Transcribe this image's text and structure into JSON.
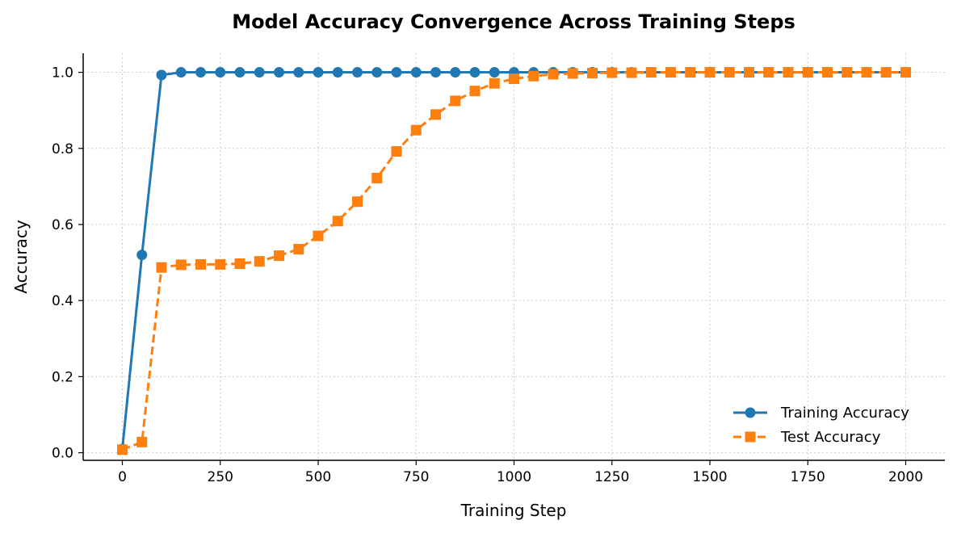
{
  "chart_data": {
    "type": "line",
    "title": "Model Accuracy Convergence Across Training Steps",
    "xlabel": "Training Step",
    "ylabel": "Accuracy",
    "xlim": [
      -100,
      2100
    ],
    "ylim": [
      -0.02,
      1.05
    ],
    "xticks": [
      0,
      250,
      500,
      750,
      1000,
      1250,
      1500,
      1750,
      2000
    ],
    "xtick_labels": [
      "0",
      "250",
      "500",
      "750",
      "1000",
      "1250",
      "1500",
      "1750",
      "2000"
    ],
    "yticks": [
      0.0,
      0.2,
      0.4,
      0.6,
      0.8,
      1.0
    ],
    "ytick_labels": [
      "0.0",
      "0.2",
      "0.4",
      "0.6",
      "0.8",
      "1.0"
    ],
    "grid": true,
    "legend_position": "lower-right",
    "x": [
      0,
      50,
      100,
      150,
      200,
      250,
      300,
      350,
      400,
      450,
      500,
      550,
      600,
      650,
      700,
      750,
      800,
      850,
      900,
      950,
      1000,
      1050,
      1100,
      1150,
      1200,
      1250,
      1300,
      1350,
      1400,
      1450,
      1500,
      1550,
      1600,
      1650,
      1700,
      1750,
      1800,
      1850,
      1900,
      1950,
      2000
    ],
    "series": [
      {
        "name": "Training Accuracy",
        "color": "#1f77b4",
        "line_style": "solid",
        "marker": "circle",
        "values": [
          0.01,
          0.52,
          0.993,
          1.0,
          1.0,
          1.0,
          1.0,
          1.0,
          1.0,
          1.0,
          1.0,
          1.0,
          1.0,
          1.0,
          1.0,
          1.0,
          1.0,
          1.0,
          1.0,
          1.0,
          1.0,
          1.0,
          1.0,
          1.0,
          1.0,
          1.0,
          1.0,
          1.0,
          1.0,
          1.0,
          1.0,
          1.0,
          1.0,
          1.0,
          1.0,
          1.0,
          1.0,
          1.0,
          1.0,
          1.0,
          1.0
        ]
      },
      {
        "name": "Test Accuracy",
        "color": "#ff7f0e",
        "line_style": "dashed",
        "marker": "square",
        "values": [
          0.008,
          0.028,
          0.487,
          0.494,
          0.495,
          0.495,
          0.497,
          0.503,
          0.518,
          0.535,
          0.57,
          0.609,
          0.66,
          0.722,
          0.792,
          0.848,
          0.889,
          0.925,
          0.951,
          0.971,
          0.983,
          0.99,
          0.995,
          0.997,
          0.998,
          0.999,
          0.999,
          1.0,
          1.0,
          1.0,
          1.0,
          1.0,
          1.0,
          1.0,
          1.0,
          1.0,
          1.0,
          1.0,
          1.0,
          1.0,
          1.0
        ]
      }
    ]
  }
}
